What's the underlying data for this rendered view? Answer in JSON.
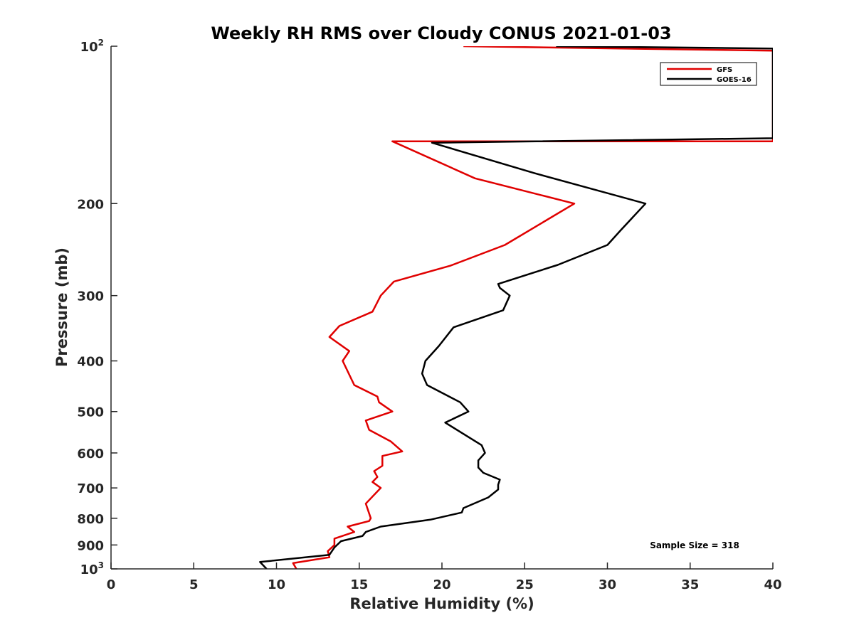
{
  "chart_data": {
    "type": "line",
    "title": "Weekly RH RMS over Cloudy CONUS 2021-01-03",
    "xlabel": "Relative Humidity (%)",
    "ylabel": "Pressure (mb)",
    "xlim": [
      0,
      40
    ],
    "ylim": [
      100,
      1000
    ],
    "y_scale": "log",
    "y_reversed": true,
    "x_ticks": [
      0,
      5,
      10,
      15,
      20,
      25,
      30,
      35,
      40
    ],
    "y_ticks": [
      {
        "value": 100,
        "base": "10",
        "exp": "2"
      },
      {
        "value": 200,
        "label": "200"
      },
      {
        "value": 300,
        "label": "300"
      },
      {
        "value": 400,
        "label": "400"
      },
      {
        "value": 500,
        "label": "500"
      },
      {
        "value": 600,
        "label": "600"
      },
      {
        "value": 700,
        "label": "700"
      },
      {
        "value": 800,
        "label": "800"
      },
      {
        "value": 900,
        "label": "900"
      },
      {
        "value": 1000,
        "base": "10",
        "exp": "3"
      }
    ],
    "grid": false,
    "legend_position": "top-right",
    "annotation": "Sample Size = 318",
    "series": [
      {
        "name": "GFS",
        "color": "#e00000",
        "points": [
          [
            21.3,
            100
          ],
          [
            40,
            102
          ],
          [
            40,
            152
          ],
          [
            17.0,
            152
          ],
          [
            22.0,
            179
          ],
          [
            28.0,
            200
          ],
          [
            23.8,
            240
          ],
          [
            20.5,
            263
          ],
          [
            17.1,
            282
          ],
          [
            16.3,
            300
          ],
          [
            15.8,
            322
          ],
          [
            13.8,
            343
          ],
          [
            13.2,
            360
          ],
          [
            14.4,
            383
          ],
          [
            14.0,
            400
          ],
          [
            14.7,
            445
          ],
          [
            16.1,
            468
          ],
          [
            16.2,
            480
          ],
          [
            17.0,
            500
          ],
          [
            15.4,
            520
          ],
          [
            15.6,
            542
          ],
          [
            16.9,
            570
          ],
          [
            17.6,
            596
          ],
          [
            16.4,
            608
          ],
          [
            16.4,
            635
          ],
          [
            15.9,
            650
          ],
          [
            16.1,
            667
          ],
          [
            15.8,
            682
          ],
          [
            16.3,
            700
          ],
          [
            15.4,
            750
          ],
          [
            15.7,
            800
          ],
          [
            15.6,
            810
          ],
          [
            14.3,
            830
          ],
          [
            14.7,
            850
          ],
          [
            13.5,
            875
          ],
          [
            13.5,
            900
          ],
          [
            13.1,
            925
          ],
          [
            13.2,
            950
          ],
          [
            11.0,
            975
          ],
          [
            11.2,
            1000
          ]
        ]
      },
      {
        "name": "GOES-16",
        "color": "#000000",
        "points": [
          [
            26.9,
            100
          ],
          [
            40,
            101
          ],
          [
            40,
            150
          ],
          [
            19.4,
            153
          ],
          [
            25.6,
            175
          ],
          [
            32.3,
            200
          ],
          [
            30.8,
            225
          ],
          [
            30.0,
            240
          ],
          [
            27.0,
            262
          ],
          [
            23.4,
            285
          ],
          [
            23.5,
            290
          ],
          [
            24.1,
            300
          ],
          [
            23.7,
            320
          ],
          [
            20.7,
            345
          ],
          [
            19.8,
            375
          ],
          [
            19.0,
            400
          ],
          [
            18.8,
            423
          ],
          [
            19.1,
            445
          ],
          [
            21.1,
            480
          ],
          [
            21.6,
            500
          ],
          [
            20.2,
            525
          ],
          [
            22.4,
            580
          ],
          [
            22.6,
            600
          ],
          [
            22.2,
            620
          ],
          [
            22.2,
            640
          ],
          [
            22.5,
            655
          ],
          [
            23.5,
            675
          ],
          [
            23.4,
            690
          ],
          [
            23.4,
            705
          ],
          [
            22.8,
            730
          ],
          [
            21.3,
            765
          ],
          [
            21.2,
            780
          ],
          [
            19.3,
            805
          ],
          [
            16.3,
            830
          ],
          [
            15.4,
            850
          ],
          [
            15.2,
            865
          ],
          [
            13.9,
            885
          ],
          [
            13.5,
            910
          ],
          [
            13.2,
            940
          ],
          [
            9.0,
            970
          ],
          [
            9.4,
            1000
          ]
        ]
      }
    ]
  }
}
